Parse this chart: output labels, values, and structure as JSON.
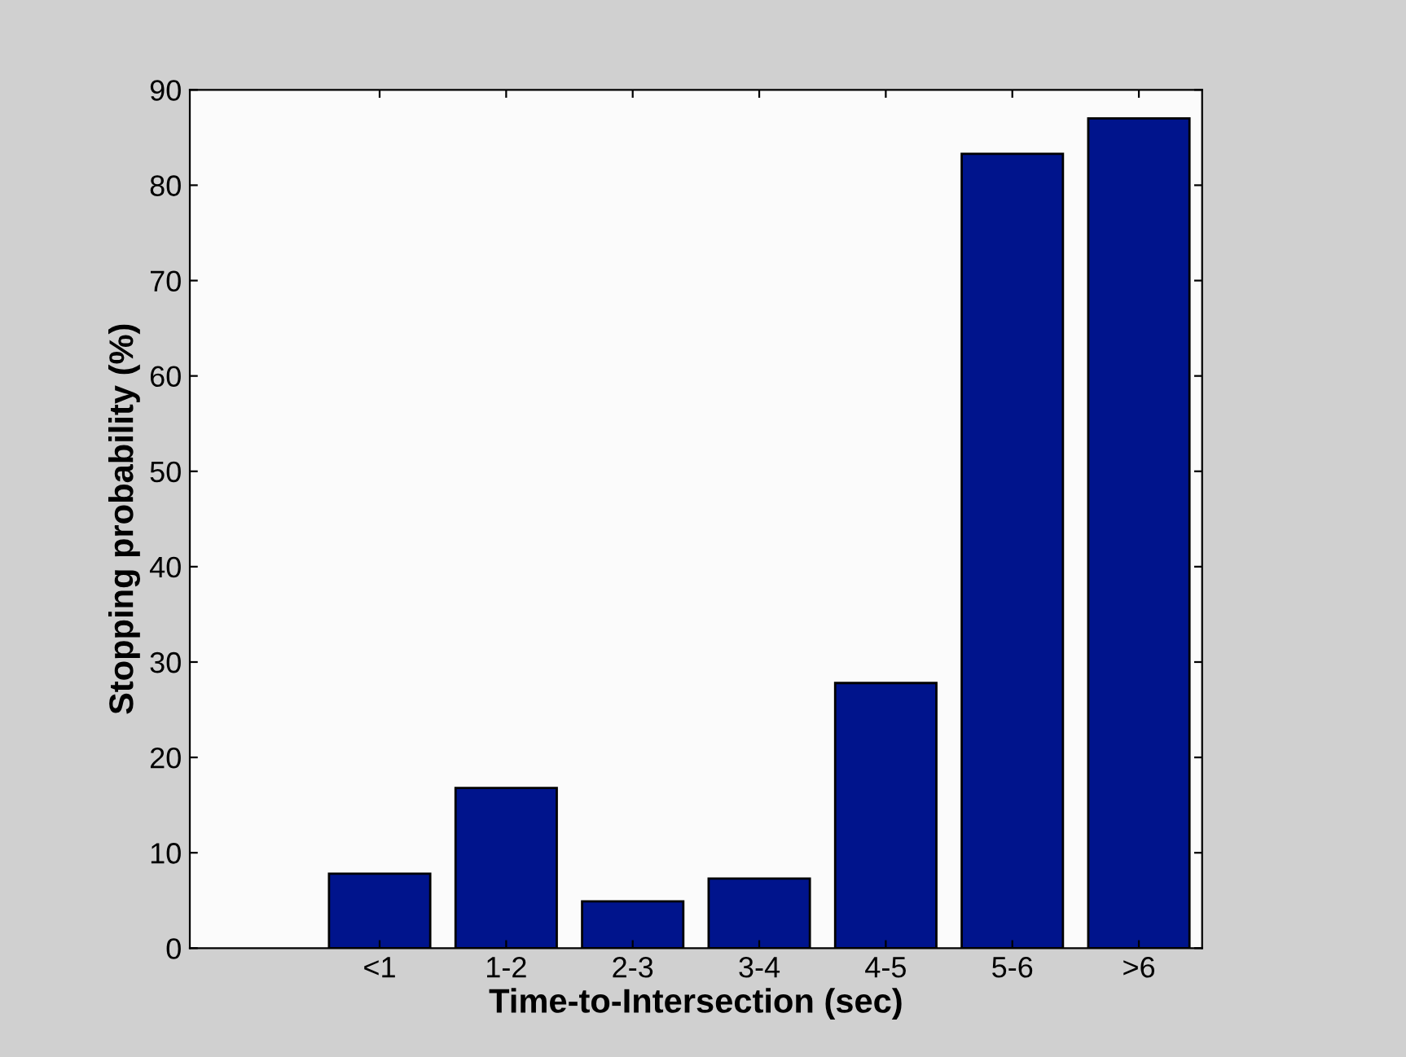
{
  "chart_data": {
    "type": "bar",
    "xlabel": "Time-to-Intersection (sec)",
    "ylabel": "Stopping probability (%)",
    "categories": [
      "<1",
      "1-2",
      "2-3",
      "3-4",
      "4-5",
      "5-6",
      ">6"
    ],
    "values": [
      7.8,
      16.8,
      4.9,
      7.3,
      27.8,
      83.3,
      87.0
    ],
    "color": "#00148c",
    "ylim": [
      0,
      90
    ],
    "yticks": [
      0,
      10,
      20,
      30,
      40,
      50,
      60,
      70,
      80,
      90
    ],
    "grid": false,
    "legend": false
  }
}
